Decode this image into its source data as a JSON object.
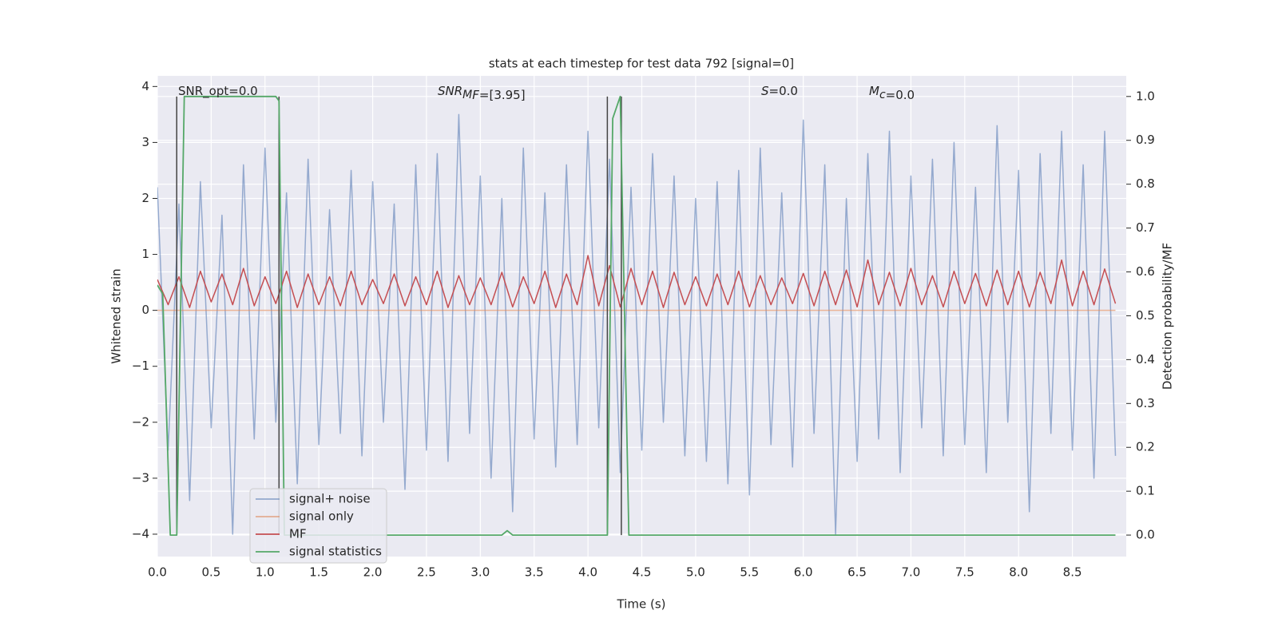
{
  "chart_data": {
    "type": "line",
    "title": "stats at each timestep for test data 792 [signal=0]",
    "xlabel": "Time (s)",
    "ylabel": "Whitened strain",
    "y2label": "Detection probability/MF",
    "annotations": [
      {
        "base": "SNR_opt=0.0"
      },
      {
        "base": "SNR",
        "sub": "M",
        "tail": "F",
        "rest": "=[3.95]"
      },
      {
        "base": "S",
        "rest": "=0.0"
      },
      {
        "base": "M",
        "sub": "c",
        "rest": "=0.0"
      }
    ],
    "xlim": [
      0,
      9.0
    ],
    "xticks": [
      {
        "value": 0,
        "label": "0.0"
      },
      0.5,
      {
        "value": 1,
        "label": "1.0"
      },
      1.5,
      {
        "value": 2,
        "label": "2.0"
      },
      2.5,
      {
        "value": 3,
        "label": "3.0"
      },
      3.5,
      {
        "value": 4,
        "label": "4.0"
      },
      4.5,
      {
        "value": 5,
        "label": "5.0"
      },
      5.5,
      {
        "value": 6,
        "label": "6.0"
      },
      6.5,
      {
        "value": 7,
        "label": "7.0"
      },
      7.5,
      {
        "value": 8,
        "label": "8.0"
      },
      8.5
    ],
    "ylim": [
      -4.4,
      4.19
    ],
    "yticks": [
      {
        "value": -4,
        "label": "−4"
      },
      {
        "value": -3,
        "label": "−3"
      },
      {
        "value": -2,
        "label": "−2"
      },
      {
        "value": -1,
        "label": "−1"
      },
      0,
      1,
      2,
      3,
      4
    ],
    "y2lim": [
      -0.049,
      1.047
    ],
    "y2ticks": [
      {
        "value": 0,
        "label": "0.0"
      },
      0.1,
      0.2,
      0.3,
      0.4,
      0.5,
      0.6,
      0.7,
      0.8,
      0.9,
      {
        "value": 1,
        "label": "1.0"
      }
    ],
    "grid": true,
    "legend": "lower left",
    "x": [
      0.0,
      0.1,
      0.2,
      0.3,
      0.4,
      0.5,
      0.6,
      0.7,
      0.8,
      0.9,
      1.0,
      1.1,
      1.2,
      1.3,
      1.4,
      1.5,
      1.6,
      1.7,
      1.8,
      1.9,
      2.0,
      2.1,
      2.2,
      2.3,
      2.4,
      2.5,
      2.6,
      2.7,
      2.8,
      2.9,
      3.0,
      3.1,
      3.2,
      3.3,
      3.4,
      3.5,
      3.6,
      3.7,
      3.8,
      3.9,
      4.0,
      4.1,
      4.2,
      4.3,
      4.4,
      4.5,
      4.6,
      4.7,
      4.8,
      4.9,
      5.0,
      5.1,
      5.2,
      5.3,
      5.4,
      5.5,
      5.6,
      5.7,
      5.8,
      5.9,
      6.0,
      6.1,
      6.2,
      6.3,
      6.4,
      6.5,
      6.6,
      6.7,
      6.8,
      6.9,
      7.0,
      7.1,
      7.2,
      7.3,
      7.4,
      7.5,
      7.6,
      7.7,
      7.8,
      7.9,
      8.0,
      8.1,
      8.2,
      8.3,
      8.4,
      8.5,
      8.6,
      8.7,
      8.8,
      8.9
    ],
    "series": [
      {
        "name": "signal+ noise",
        "color": "#4c72b0",
        "values": [
          2.2,
          -2.5,
          1.9,
          -3.4,
          2.3,
          -2.1,
          1.7,
          -4.0,
          2.6,
          -2.3,
          2.9,
          -2.0,
          2.1,
          -3.1,
          2.7,
          -2.4,
          1.8,
          -2.2,
          2.5,
          -2.6,
          2.3,
          -2.0,
          1.9,
          -3.2,
          2.6,
          -2.5,
          2.8,
          -2.7,
          3.5,
          -2.2,
          2.4,
          -3.0,
          2.0,
          -3.6,
          2.9,
          -2.3,
          2.1,
          -2.8,
          2.6,
          -2.4,
          3.2,
          -2.1,
          2.7,
          -2.9,
          2.2,
          -2.5,
          2.8,
          -2.0,
          2.4,
          -2.6,
          2.0,
          -2.7,
          2.3,
          -3.1,
          2.5,
          -3.3,
          2.9,
          -2.4,
          2.1,
          -2.8,
          3.4,
          -2.2,
          2.6,
          -4.0,
          2.0,
          -2.7,
          2.8,
          -2.3,
          3.2,
          -2.9,
          2.4,
          -2.1,
          2.7,
          -2.6,
          3.0,
          -2.4,
          2.2,
          -2.9,
          3.3,
          -2.0,
          2.5,
          -3.6,
          2.8,
          -2.2,
          3.2,
          -2.5,
          2.6,
          -3.0,
          3.2,
          -2.6
        ]
      },
      {
        "name": "signal only",
        "color": "#dd8452",
        "x": [
          0.0,
          8.9
        ],
        "values": [
          0,
          0
        ]
      },
      {
        "name": "MF",
        "color": "#c44e52",
        "values": [
          0.55,
          0.1,
          0.6,
          0.05,
          0.7,
          0.15,
          0.65,
          0.1,
          0.75,
          0.08,
          0.6,
          0.12,
          0.7,
          0.05,
          0.65,
          0.1,
          0.6,
          0.08,
          0.7,
          0.1,
          0.55,
          0.12,
          0.65,
          0.08,
          0.6,
          0.1,
          0.7,
          0.05,
          0.62,
          0.1,
          0.58,
          0.1,
          0.68,
          0.06,
          0.6,
          0.12,
          0.7,
          0.05,
          0.65,
          0.1,
          0.98,
          0.08,
          0.8,
          0.06,
          0.75,
          0.1,
          0.7,
          0.05,
          0.68,
          0.1,
          0.6,
          0.08,
          0.65,
          0.1,
          0.7,
          0.06,
          0.62,
          0.1,
          0.58,
          0.12,
          0.66,
          0.08,
          0.7,
          0.1,
          0.72,
          0.06,
          0.9,
          0.1,
          0.68,
          0.08,
          0.75,
          0.1,
          0.62,
          0.06,
          0.7,
          0.12,
          0.66,
          0.08,
          0.72,
          0.1,
          0.7,
          0.06,
          0.68,
          0.12,
          0.9,
          0.08,
          0.7,
          0.1,
          0.74,
          0.12
        ]
      },
      {
        "name": "signal statistics",
        "color": "#55a868",
        "axis": "y2",
        "x": [
          0.0,
          0.05,
          0.12,
          0.18,
          0.25,
          1.1,
          1.13,
          1.18,
          3.2,
          3.25,
          3.3,
          4.18,
          4.23,
          4.3,
          4.38,
          8.9
        ],
        "values": [
          0.57,
          0.55,
          0.0,
          0.0,
          1.0,
          1.0,
          0.99,
          0.0,
          0.0,
          0.01,
          0.0,
          0.0,
          0.95,
          1.0,
          0.0,
          0.0
        ]
      }
    ],
    "vlines": {
      "x": [
        0.18,
        1.13,
        4.18,
        4.31
      ],
      "ymin": 0,
      "ymax": 1,
      "color": "#444444",
      "axis": "y2"
    }
  }
}
